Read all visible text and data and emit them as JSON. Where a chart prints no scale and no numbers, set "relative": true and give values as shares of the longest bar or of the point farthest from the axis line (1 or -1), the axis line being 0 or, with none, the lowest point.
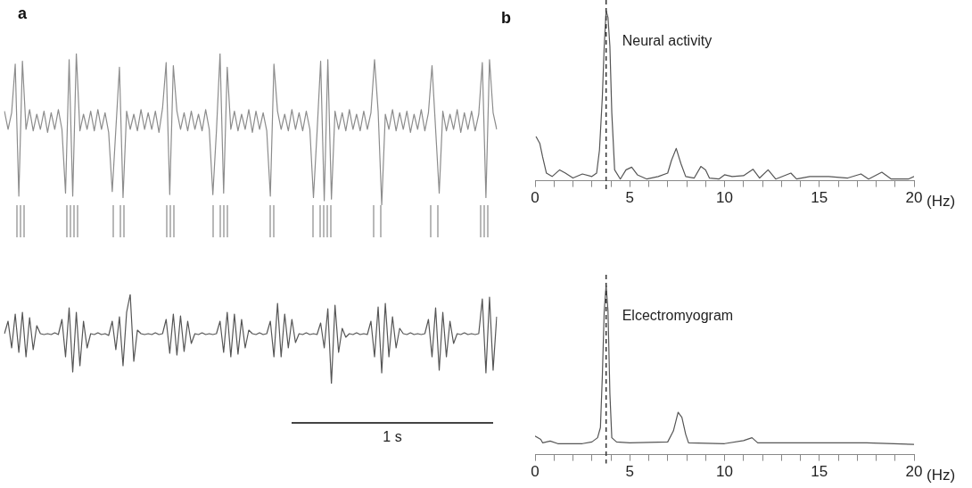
{
  "chart_data": [
    {
      "type": "line",
      "title": "a",
      "relative": true,
      "tick_labels": false,
      "color": "#8c8c8c",
      "categories": [
        null,
        null,
        null,
        null,
        null,
        null,
        null,
        null,
        null,
        null,
        null,
        null,
        null,
        null,
        null,
        null,
        null,
        null,
        null,
        null,
        null,
        null,
        null,
        null,
        null,
        null,
        null,
        null,
        null,
        null,
        null,
        null,
        null,
        null,
        null,
        null,
        null,
        null,
        null,
        null,
        null,
        null,
        null,
        null,
        null,
        null,
        null,
        null,
        null,
        null,
        null,
        null,
        null,
        null,
        null,
        null,
        null,
        null,
        null,
        null,
        null,
        null,
        null,
        null,
        null,
        null,
        null,
        null,
        null,
        null,
        null,
        null,
        null,
        null,
        null,
        null,
        null,
        null,
        null,
        null,
        null,
        null,
        null,
        null,
        null,
        null,
        null,
        null,
        null,
        null,
        null,
        null,
        null,
        null,
        null,
        null,
        null,
        null,
        null,
        null,
        null,
        null,
        null,
        null,
        null,
        null,
        null,
        null,
        null,
        null,
        null,
        null,
        null,
        null,
        null,
        null,
        null,
        null,
        null,
        null,
        null,
        null,
        null,
        null,
        null,
        null,
        null,
        null,
        null,
        null,
        null,
        null,
        null,
        null,
        null,
        null,
        null,
        null
      ],
      "values": [
        0.62,
        0.5,
        0.61,
        0.93,
        0.06,
        0.95,
        0.5,
        0.63,
        0.49,
        0.6,
        0.5,
        0.62,
        0.48,
        0.61,
        0.5,
        0.63,
        0.5,
        0.08,
        0.96,
        0.06,
        1.0,
        0.49,
        0.6,
        0.5,
        0.62,
        0.49,
        0.63,
        0.5,
        0.61,
        0.48,
        0.09,
        0.5,
        0.91,
        0.05,
        0.62,
        0.5,
        0.6,
        0.49,
        0.63,
        0.5,
        0.61,
        0.5,
        0.62,
        0.48,
        0.64,
        0.94,
        0.07,
        0.92,
        0.62,
        0.5,
        0.61,
        0.49,
        0.62,
        0.5,
        0.6,
        0.49,
        0.63,
        0.5,
        0.07,
        0.49,
        1.0,
        0.08,
        0.91,
        0.5,
        0.62,
        0.49,
        0.6,
        0.5,
        0.63,
        0.48,
        0.62,
        0.5,
        0.61,
        0.49,
        0.06,
        0.93,
        0.62,
        0.5,
        0.6,
        0.49,
        0.63,
        0.5,
        0.61,
        0.49,
        0.62,
        0.5,
        0.05,
        0.48,
        0.95,
        0.03,
        0.96,
        0.04,
        0.62,
        0.5,
        0.61,
        0.49,
        0.63,
        0.5,
        0.6,
        0.49,
        0.62,
        0.5,
        0.61,
        0.96,
        0.62,
        0.0,
        0.6,
        0.5,
        0.63,
        0.49,
        0.61,
        0.5,
        0.62,
        0.48,
        0.6,
        0.5,
        0.63,
        0.49,
        0.61,
        0.92,
        0.5,
        0.08,
        0.62,
        0.49,
        0.6,
        0.5,
        0.63,
        0.48,
        0.61,
        0.5,
        0.62,
        0.49,
        0.6,
        0.94,
        0.05,
        0.96,
        0.61,
        0.5
      ]
    },
    {
      "type": "bar",
      "relative": true,
      "tick_labels": false,
      "color": "#9a9a9a",
      "categories": [
        null,
        null,
        null,
        null,
        null,
        null,
        null,
        null,
        null,
        null,
        null,
        null,
        null,
        null,
        null,
        null,
        null,
        null,
        null,
        null,
        null,
        null,
        null,
        null,
        null,
        null,
        null,
        null,
        null,
        null,
        null,
        null,
        null,
        null,
        null,
        null,
        null,
        null,
        null,
        null,
        null,
        null,
        null,
        null,
        null,
        null,
        null,
        null,
        null,
        null,
        null,
        null,
        null,
        null,
        null,
        null,
        null,
        null,
        null,
        null,
        null,
        null,
        null,
        null,
        null,
        null,
        null,
        null,
        null,
        null,
        null,
        null,
        null,
        null,
        null,
        null,
        null,
        null,
        null,
        null,
        null,
        null,
        null,
        null,
        null,
        null,
        null,
        null,
        null,
        null,
        null,
        null,
        null,
        null,
        null,
        null,
        null,
        null,
        null,
        null,
        null,
        null,
        null,
        null,
        null,
        null,
        null,
        null,
        null,
        null,
        null,
        null,
        null,
        null,
        null,
        null,
        null,
        null,
        null,
        null,
        null,
        null,
        null,
        null,
        null,
        null,
        null,
        null,
        null,
        null,
        null,
        null,
        null,
        null,
        null,
        null,
        null,
        null
      ],
      "values": [
        null,
        null,
        null,
        1,
        1,
        1,
        null,
        null,
        null,
        null,
        null,
        null,
        null,
        null,
        null,
        null,
        null,
        1,
        1,
        1,
        1,
        null,
        null,
        null,
        null,
        null,
        null,
        null,
        null,
        null,
        1,
        null,
        1,
        1,
        null,
        null,
        null,
        null,
        null,
        null,
        null,
        null,
        null,
        null,
        null,
        1,
        1,
        1,
        null,
        null,
        null,
        null,
        null,
        null,
        null,
        null,
        null,
        null,
        1,
        null,
        1,
        1,
        1,
        null,
        null,
        null,
        null,
        null,
        null,
        null,
        null,
        null,
        null,
        null,
        1,
        1,
        null,
        null,
        null,
        null,
        null,
        null,
        null,
        null,
        null,
        null,
        1,
        null,
        1,
        1,
        1,
        1,
        null,
        null,
        null,
        null,
        null,
        null,
        null,
        null,
        null,
        null,
        null,
        1,
        null,
        1,
        null,
        null,
        null,
        null,
        null,
        null,
        null,
        null,
        null,
        null,
        null,
        null,
        null,
        1,
        null,
        1,
        null,
        null,
        null,
        null,
        null,
        null,
        null,
        null,
        null,
        null,
        null,
        1,
        1,
        1,
        null,
        null
      ]
    },
    {
      "type": "line",
      "relative": true,
      "tick_labels": false,
      "color": "#555555",
      "annotations": [
        "1 s"
      ],
      "categories": [
        null,
        null,
        null,
        null,
        null,
        null,
        null,
        null,
        null,
        null,
        null,
        null,
        null,
        null,
        null,
        null,
        null,
        null,
        null,
        null,
        null,
        null,
        null,
        null,
        null,
        null,
        null,
        null,
        null,
        null,
        null,
        null,
        null,
        null,
        null,
        null,
        null,
        null,
        null,
        null,
        null,
        null,
        null,
        null,
        null,
        null,
        null,
        null,
        null,
        null,
        null,
        null,
        null,
        null,
        null,
        null,
        null,
        null,
        null,
        null,
        null,
        null,
        null,
        null,
        null,
        null,
        null,
        null,
        null,
        null,
        null,
        null,
        null,
        null,
        null,
        null,
        null,
        null,
        null,
        null,
        null,
        null,
        null,
        null,
        null,
        null,
        null,
        null,
        null,
        null,
        null,
        null,
        null,
        null,
        null,
        null,
        null,
        null,
        null,
        null,
        null,
        null,
        null,
        null,
        null,
        null,
        null,
        null,
        null,
        null,
        null,
        null,
        null,
        null,
        null,
        null,
        null,
        null,
        null,
        null,
        null,
        null,
        null,
        null,
        null,
        null,
        null,
        null,
        null,
        null,
        null,
        null,
        null,
        null,
        null,
        null,
        null,
        null
      ],
      "values": [
        0.56,
        0.7,
        0.4,
        0.78,
        0.35,
        0.8,
        0.3,
        0.74,
        0.38,
        0.65,
        0.56,
        0.55,
        0.56,
        0.55,
        0.57,
        0.55,
        0.72,
        0.3,
        0.85,
        0.13,
        0.8,
        0.2,
        0.7,
        0.4,
        0.56,
        0.55,
        0.57,
        0.55,
        0.56,
        0.54,
        0.7,
        0.38,
        0.75,
        0.2,
        0.8,
        1.0,
        0.25,
        0.6,
        0.56,
        0.55,
        0.56,
        0.55,
        0.57,
        0.55,
        0.56,
        0.72,
        0.34,
        0.78,
        0.32,
        0.76,
        0.36,
        0.7,
        0.45,
        0.56,
        0.55,
        0.57,
        0.55,
        0.56,
        0.55,
        0.56,
        0.7,
        0.35,
        0.8,
        0.3,
        0.78,
        0.33,
        0.72,
        0.4,
        0.6,
        0.56,
        0.55,
        0.57,
        0.55,
        0.56,
        0.7,
        0.3,
        0.9,
        0.3,
        0.78,
        0.4,
        0.72,
        0.46,
        0.56,
        0.55,
        0.57,
        0.55,
        0.56,
        0.55,
        0.68,
        0.4,
        0.84,
        0.0,
        0.88,
        0.35,
        0.62,
        0.52,
        0.56,
        0.55,
        0.57,
        0.55,
        0.56,
        0.55,
        0.7,
        0.3,
        0.86,
        0.12,
        0.9,
        0.3,
        0.75,
        0.4,
        0.62,
        0.56,
        0.55,
        0.57,
        0.55,
        0.56,
        0.55,
        0.56,
        0.72,
        0.3,
        0.85,
        0.15,
        0.8,
        0.3,
        0.7,
        0.45,
        0.56,
        0.55,
        0.57,
        0.55,
        0.56,
        0.55,
        0.56,
        0.95,
        0.12,
        0.97,
        0.15,
        0.75
      ]
    },
    {
      "type": "line",
      "title": "b",
      "relative": true,
      "tick_labels": "x",
      "xlabel": "(Hz)",
      "xlim": [
        0,
        20
      ],
      "xticks": [
        0,
        {
          "value": 1,
          "label": null
        },
        {
          "value": 2,
          "label": null
        },
        {
          "value": 3,
          "label": null
        },
        {
          "value": 4,
          "label": null
        },
        5,
        {
          "value": 6,
          "label": null
        },
        {
          "value": 7,
          "label": null
        },
        {
          "value": 8,
          "label": null
        },
        {
          "value": 9,
          "label": null
        },
        10,
        {
          "value": 11,
          "label": null
        },
        {
          "value": 12,
          "label": null
        },
        {
          "value": 13,
          "label": null
        },
        {
          "value": 14,
          "label": null
        },
        15,
        {
          "value": 16,
          "label": null
        },
        {
          "value": 17,
          "label": null
        },
        {
          "value": 18,
          "label": null
        },
        {
          "value": 19,
          "label": null
        },
        20
      ],
      "ref_lines": [
        {
          "axis": "x",
          "value": 3.75,
          "color": "#333333",
          "line_style": "dashed"
        }
      ],
      "series": [
        {
          "name": "Neural activity",
          "color": "#555555",
          "x": [
            0.05,
            0.25,
            0.4,
            0.6,
            0.9,
            1.3,
            1.6,
            2.0,
            2.5,
            3.0,
            3.25,
            3.4,
            3.55,
            3.65,
            3.75,
            3.85,
            3.95,
            4.05,
            4.2,
            4.5,
            4.8,
            5.1,
            5.4,
            5.9,
            6.5,
            7.0,
            7.2,
            7.45,
            7.7,
            7.95,
            8.4,
            8.75,
            9.0,
            9.2,
            9.7,
            10.0,
            10.4,
            11.0,
            11.5,
            11.85,
            12.3,
            12.7,
            13.5,
            13.8,
            14.5,
            15.5,
            16.5,
            17.2,
            17.6,
            18.3,
            18.8,
            19.7,
            20
          ],
          "values": [
            0.26,
            0.22,
            0.14,
            0.045,
            0.025,
            0.064,
            0.045,
            0.016,
            0.04,
            0.025,
            0.045,
            0.18,
            0.49,
            0.79,
            1.0,
            0.96,
            0.79,
            0.4,
            0.064,
            0.01,
            0.064,
            0.08,
            0.035,
            0.01,
            0.025,
            0.045,
            0.12,
            0.19,
            0.1,
            0.025,
            0.016,
            0.084,
            0.064,
            0.016,
            0.01,
            0.035,
            0.025,
            0.03,
            0.068,
            0.016,
            0.064,
            0.01,
            0.045,
            0.01,
            0.025,
            0.025,
            0.016,
            0.04,
            0.01,
            0.05,
            0.01,
            0.01,
            0.025
          ]
        }
      ]
    },
    {
      "type": "line",
      "relative": true,
      "tick_labels": "x",
      "xlabel": "(Hz)",
      "xlim": [
        0,
        20
      ],
      "xticks": [
        0,
        {
          "value": 1,
          "label": null
        },
        {
          "value": 2,
          "label": null
        },
        {
          "value": 3,
          "label": null
        },
        {
          "value": 4,
          "label": null
        },
        5,
        {
          "value": 6,
          "label": null
        },
        {
          "value": 7,
          "label": null
        },
        {
          "value": 8,
          "label": null
        },
        {
          "value": 9,
          "label": null
        },
        10,
        {
          "value": 11,
          "label": null
        },
        {
          "value": 12,
          "label": null
        },
        {
          "value": 13,
          "label": null
        },
        {
          "value": 14,
          "label": null
        },
        15,
        {
          "value": 16,
          "label": null
        },
        {
          "value": 17,
          "label": null
        },
        {
          "value": 18,
          "label": null
        },
        {
          "value": 19,
          "label": null
        },
        20
      ],
      "ref_lines": [
        {
          "axis": "x",
          "value": 3.75,
          "color": "#333333",
          "line_style": "dashed"
        }
      ],
      "series": [
        {
          "name": "Elcectromyogram",
          "color": "#555555",
          "x": [
            0,
            0.3,
            0.4,
            0.8,
            1.2,
            2.5,
            3.0,
            3.3,
            3.45,
            3.55,
            3.65,
            3.75,
            3.85,
            3.95,
            4.05,
            4.3,
            5,
            7.0,
            7.3,
            7.55,
            7.75,
            7.95,
            8.1,
            10,
            11.0,
            11.45,
            11.75,
            15,
            17.5,
            20
          ],
          "values": [
            0.11,
            0.09,
            0.07,
            0.08,
            0.065,
            0.065,
            0.075,
            0.1,
            0.16,
            0.46,
            0.85,
            1.0,
            0.85,
            0.36,
            0.1,
            0.075,
            0.07,
            0.075,
            0.14,
            0.25,
            0.22,
            0.12,
            0.07,
            0.065,
            0.083,
            0.1,
            0.07,
            0.07,
            0.07,
            0.06
          ]
        }
      ]
    }
  ]
}
